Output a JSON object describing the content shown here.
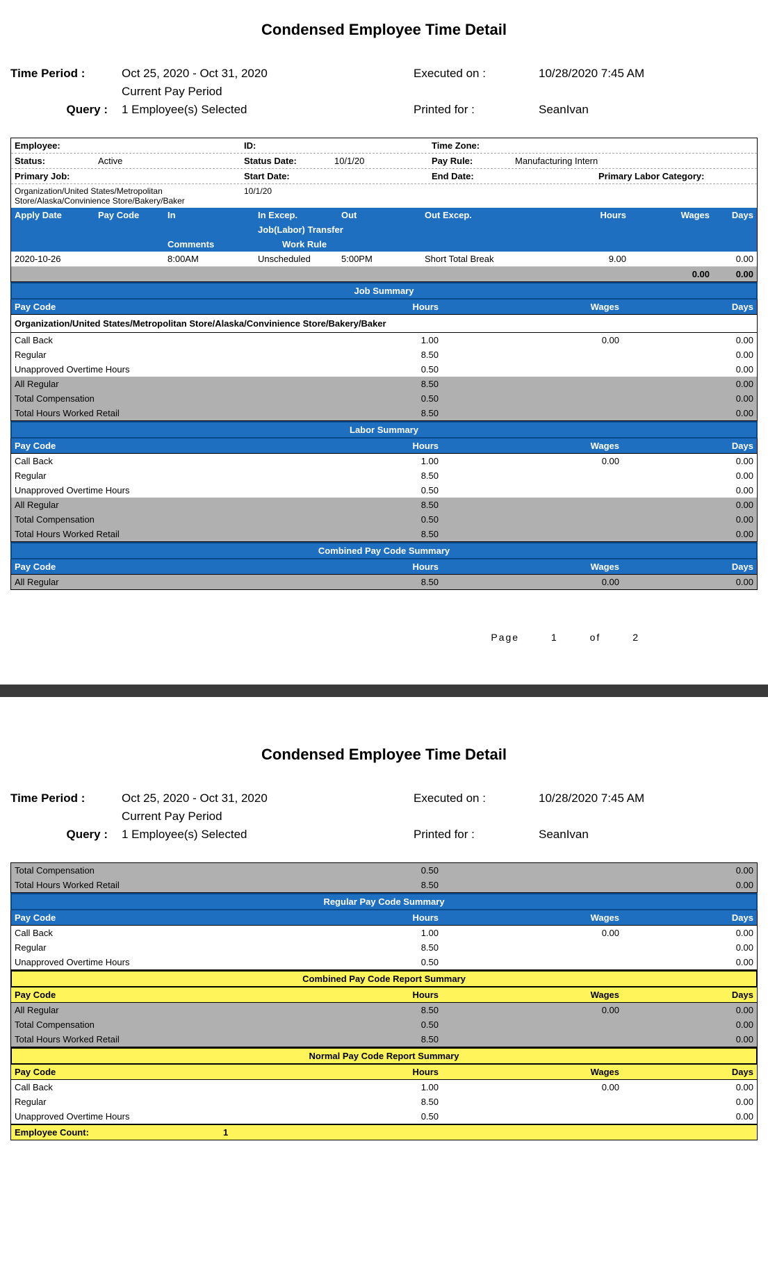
{
  "report_title": "Condensed Employee Time Detail",
  "header": {
    "time_period_label": "Time Period :",
    "time_period_value": "Oct 25, 2020   - Oct 31, 2020",
    "pay_period": "Current Pay Period",
    "query_label": "Query :",
    "query_value": "1 Employee(s) Selected",
    "executed_label": "Executed on :",
    "executed_value": "10/28/2020 7:45 AM",
    "printed_label": "Printed for :",
    "printed_value": "SeanIvan"
  },
  "employee_info": {
    "employee_label": "Employee:",
    "employee_value": "",
    "id_label": "ID:",
    "id_value": "",
    "tz_label": "Time Zone:",
    "tz_value": "",
    "status_label": "Status:",
    "status_value": "Active",
    "status_date_label": "Status Date:",
    "status_date_value": "10/1/20",
    "pay_rule_label": "Pay Rule:",
    "pay_rule_value": "Manufacturing Intern",
    "primary_job_label": "Primary Job:",
    "start_date_label": "Start Date:",
    "start_date_value": "10/1/20",
    "end_date_label": "End Date:",
    "end_date_value": "",
    "primary_labor_label": "Primary Labor Category:",
    "org_path": "Organization/United States/Metropolitan Store/Alaska/Convinience Store/Bakery/Baker"
  },
  "cols": {
    "apply_date": "Apply Date",
    "pay_code": "Pay Code",
    "in": "In",
    "in_excep": "In Excep.",
    "out": "Out",
    "out_excep": "Out Excep.",
    "hours": "Hours",
    "wages": "Wages",
    "days": "Days",
    "job_transfer": "Job(Labor) Transfer",
    "comments": "Comments",
    "work_rule": "Work Rule"
  },
  "detail_rows": [
    {
      "date": "2020-10-26",
      "paycode": "",
      "in": "8:00AM",
      "in_exc": "Unscheduled",
      "out": "5:00PM",
      "out_exc": "Short Total Break",
      "hours": "9.00",
      "wages": "",
      "days": "0.00"
    }
  ],
  "totals": {
    "wages": "0.00",
    "days": "0.00"
  },
  "sections": {
    "job_summary": "Job Summary",
    "labor_summary": "Labor Summary",
    "combined_summary": "Combined Pay Code Summary",
    "regular_summary": "Regular Pay Code Summary",
    "combined_report": "Combined Pay Code Report Summary",
    "normal_report": "Normal Pay Code Report Summary"
  },
  "job_summary_org": "Organization/United States/Metropolitan Store/Alaska/Convinience Store/Bakery/Baker",
  "summary_rows_white": [
    {
      "pc": "Call Back",
      "h": "1.00",
      "w": "0.00",
      "d": "0.00"
    },
    {
      "pc": "Regular",
      "h": "8.50",
      "w": "",
      "d": "0.00"
    },
    {
      "pc": "Unapproved Overtime Hours",
      "h": "0.50",
      "w": "",
      "d": "0.00"
    }
  ],
  "summary_rows_gray": [
    {
      "pc": "All Regular",
      "h": "8.50",
      "w": "",
      "d": "0.00"
    },
    {
      "pc": "Total Compensation",
      "h": "0.50",
      "w": "",
      "d": "0.00"
    },
    {
      "pc": "Total Hours Worked Retail",
      "h": "8.50",
      "w": "",
      "d": "0.00"
    }
  ],
  "combined_rows": [
    {
      "pc": "All Regular",
      "h": "8.50",
      "w": "0.00",
      "d": "0.00"
    }
  ],
  "page2_top_gray": [
    {
      "pc": "Total Compensation",
      "h": "0.50",
      "w": "",
      "d": "0.00"
    },
    {
      "pc": "Total Hours Worked Retail",
      "h": "8.50",
      "w": "",
      "d": "0.00"
    }
  ],
  "combined_report_rows": [
    {
      "pc": "All Regular",
      "h": "8.50",
      "w": "0.00",
      "d": "0.00"
    },
    {
      "pc": "Total Compensation",
      "h": "0.50",
      "w": "",
      "d": "0.00"
    },
    {
      "pc": "Total Hours Worked Retail",
      "h": "8.50",
      "w": "",
      "d": "0.00"
    }
  ],
  "employee_count_label": "Employee Count:",
  "employee_count_value": "1",
  "pager": {
    "page_label": "Page",
    "current": "1",
    "of_label": "of",
    "total": "2"
  },
  "colors": {
    "blue": "#1f6fc0",
    "blue_dark": "#0a4a8a",
    "gray": "#b0b0b0",
    "yellow": "#fff55a"
  }
}
